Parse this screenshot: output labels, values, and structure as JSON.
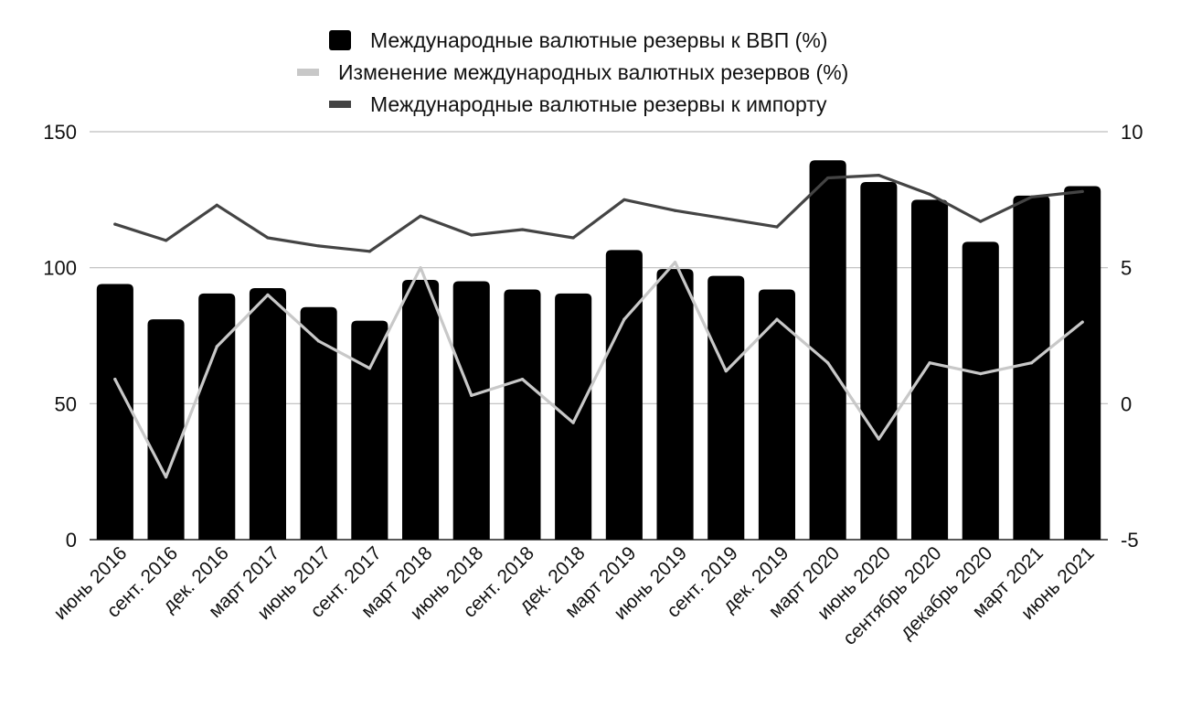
{
  "chart_data": {
    "type": "bar",
    "categories": [
      "июнь 2016",
      "сент. 2016",
      "дек. 2016",
      "март 2017",
      "июнь 2017",
      "сент. 2017",
      "март 2018",
      "июнь 2018",
      "сент. 2018",
      "дек. 2018",
      "март 2019",
      "июнь 2019",
      "сент. 2019",
      "дек. 2019",
      "март 2020",
      "июнь 2020",
      "сентябрь 2020",
      "декабрь 2020",
      "март 2021",
      "июнь 2021"
    ],
    "series": [
      {
        "name": "Международные валютные резервы к ВВП (%)",
        "type": "bar",
        "axis": "left",
        "color": "#000000",
        "values": [
          94,
          81,
          90.5,
          92.5,
          85.5,
          80.5,
          95.5,
          95,
          92,
          90.5,
          106.5,
          99.5,
          97,
          92,
          139.5,
          131.5,
          125,
          109.5,
          126.5,
          130
        ]
      },
      {
        "name": "Изменение международных валютных резервов (%)",
        "type": "line",
        "axis": "right",
        "color": "#c8c8c8",
        "values": [
          0.9,
          -2.7,
          2.1,
          4,
          2.3,
          1.3,
          5,
          0.3,
          0.9,
          -0.7,
          3.1,
          5.2,
          1.2,
          3.1,
          1.5,
          -1.3,
          1.5,
          1.1,
          1.5,
          3
        ]
      },
      {
        "name": "Международные валютные резервы к импорту",
        "type": "line",
        "axis": "right",
        "color": "#444444",
        "values": [
          6.6,
          6,
          7.3,
          6.1,
          5.8,
          5.6,
          6.9,
          6.2,
          6.4,
          6.1,
          7.5,
          7.1,
          6.8,
          6.5,
          8.3,
          8.4,
          7.7,
          6.7,
          7.6,
          7.8
        ]
      }
    ],
    "y_left": {
      "min": 0,
      "max": 150,
      "ticks": [
        0,
        50,
        100,
        150
      ]
    },
    "y_right": {
      "min": -5,
      "max": 10,
      "ticks": [
        -5,
        0,
        5,
        10
      ]
    },
    "grid": true,
    "legend_position": "top-center",
    "title": "",
    "xlabel": "",
    "ylabel": ""
  }
}
